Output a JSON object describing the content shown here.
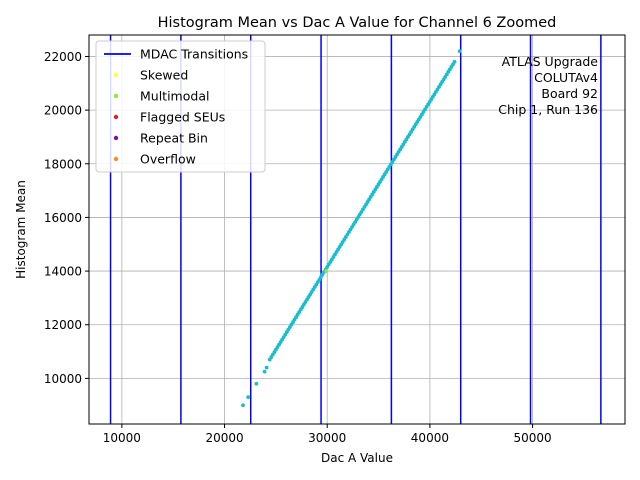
{
  "chart_data": {
    "type": "scatter",
    "title": "Histogram Mean vs Dac A Value for Channel 6 Zoomed",
    "xlabel": "Dac A Value",
    "ylabel": "Histogram Mean",
    "xlim": [
      6800,
      59000
    ],
    "ylim": [
      8300,
      22800
    ],
    "x_ticks": [
      10000,
      20000,
      30000,
      40000,
      50000
    ],
    "y_ticks": [
      10000,
      12000,
      14000,
      16000,
      18000,
      20000,
      22000
    ],
    "x_tick_labels": [
      "10000",
      "20000",
      "30000",
      "40000",
      "50000"
    ],
    "y_tick_labels": [
      "10000",
      "12000",
      "14000",
      "16000",
      "18000",
      "20000",
      "22000"
    ],
    "grid": true,
    "legend_position": "top-left",
    "legend": [
      {
        "label": "MDAC Transitions",
        "kind": "line",
        "color": "#0000ff"
      },
      {
        "label": "Skewed",
        "kind": "marker",
        "color": "#ffff33"
      },
      {
        "label": "Multimodal",
        "kind": "marker",
        "color": "#99e62e"
      },
      {
        "label": "Flagged SEUs",
        "kind": "marker",
        "color": "#e02020"
      },
      {
        "label": "Repeat Bin",
        "kind": "marker",
        "color": "#7f0fa0"
      },
      {
        "label": "Overflow",
        "kind": "marker",
        "color": "#ff8c1a"
      }
    ],
    "annotation": [
      "ATLAS Upgrade",
      "COLUTAv4",
      "Board 92",
      "Chip 1, Run 136"
    ],
    "mdac_transitions": [
      8900,
      15750,
      22550,
      29400,
      36250,
      43000,
      49800,
      56650
    ],
    "series": [
      {
        "color": "#17becf",
        "segments": [
          {
            "x_start": 24400,
            "x_end": 42400,
            "y_start": 10700,
            "y_end": 21800,
            "count": 120
          }
        ],
        "points": [
          {
            "x": 21800,
            "y": 9000
          },
          {
            "x": 22300,
            "y": 9300
          },
          {
            "x": 23100,
            "y": 9800
          },
          {
            "x": 23900,
            "y": 10250
          },
          {
            "x": 24100,
            "y": 10400
          },
          {
            "x": 42900,
            "y": 22200
          }
        ]
      },
      {
        "color": "#99e62e",
        "segments": [],
        "points": [
          {
            "x": 29900,
            "y": 14000
          }
        ]
      }
    ]
  }
}
